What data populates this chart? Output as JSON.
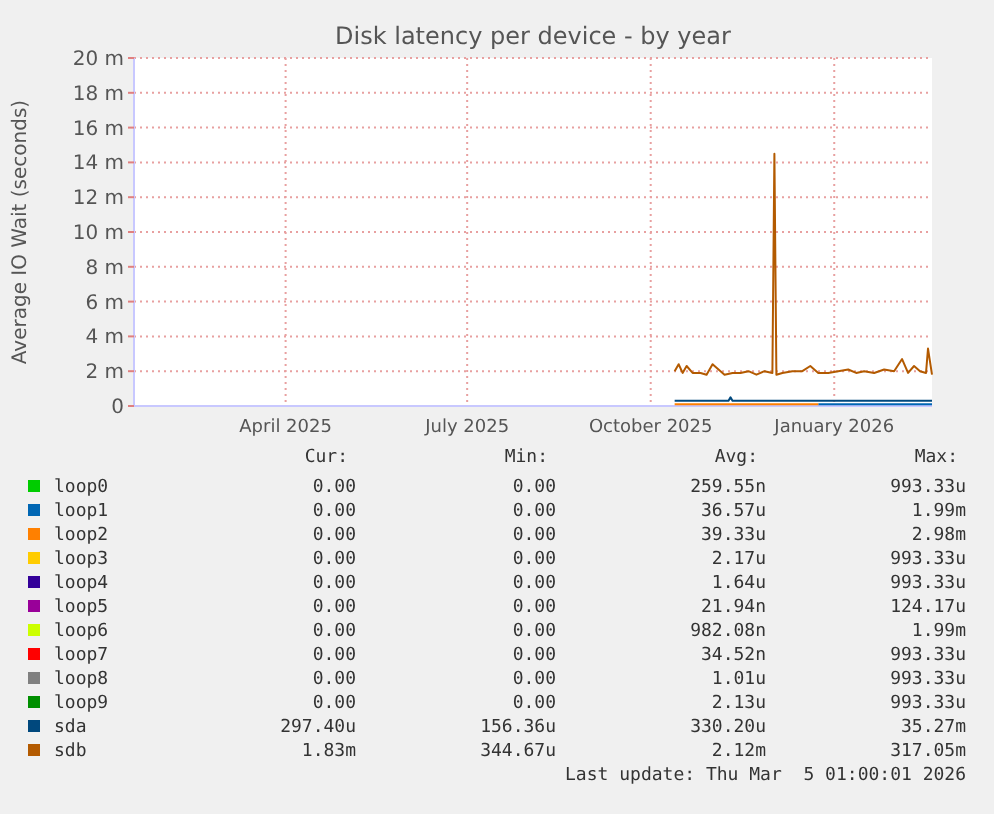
{
  "chart_data": {
    "type": "line",
    "title": "Disk latency per device - by year",
    "ylabel": "Average IO Wait (seconds)",
    "xlim": [
      "2025-01-29",
      "2026-03-05"
    ],
    "xticks": [
      {
        "value": "2025-04-15",
        "label": "April 2025"
      },
      {
        "value": "2025-07-15",
        "label": "July 2025"
      },
      {
        "value": "2025-10-15",
        "label": "October 2025"
      },
      {
        "value": "2026-01-15",
        "label": "January 2026"
      }
    ],
    "ylim": [
      0,
      20
    ],
    "yticks": [
      0,
      {
        "value": 2,
        "label": "2 m"
      },
      {
        "value": 4,
        "label": "4 m"
      },
      {
        "value": 6,
        "label": "6 m"
      },
      {
        "value": 8,
        "label": "8 m"
      },
      {
        "value": 10,
        "label": "10 m"
      },
      {
        "value": 12,
        "label": "12 m"
      },
      {
        "value": 14,
        "label": "14 m"
      },
      {
        "value": 16,
        "label": "16 m"
      },
      {
        "value": 18,
        "label": "18 m"
      },
      {
        "value": 20,
        "label": "20 m"
      }
    ],
    "grid": true,
    "legend": "bottom",
    "line_style": "solid",
    "series": [
      {
        "name": "loop0",
        "color": "#00cc00"
      },
      {
        "name": "loop1",
        "color": "#0066b3",
        "x": [
          "2026-01-07",
          "2026-03-05"
        ],
        "values": [
          0.1,
          0.1
        ]
      },
      {
        "name": "loop2",
        "color": "#ff8000",
        "x": [
          "2025-10-27",
          "2026-01-07"
        ],
        "values": [
          0.1,
          0.1
        ]
      },
      {
        "name": "loop3",
        "color": "#ffcc00"
      },
      {
        "name": "loop4",
        "color": "#330099"
      },
      {
        "name": "loop5",
        "color": "#990099"
      },
      {
        "name": "loop6",
        "color": "#ccff00"
      },
      {
        "name": "loop7",
        "color": "#ff0000"
      },
      {
        "name": "loop8",
        "color": "#808080"
      },
      {
        "name": "loop9",
        "color": "#008f00"
      },
      {
        "name": "sda",
        "color": "#00487d",
        "x": [
          "2025-10-27",
          "2025-11-23",
          "2025-11-24",
          "2025-11-25",
          "2026-03-05"
        ],
        "values": [
          0.3,
          0.3,
          0.5,
          0.3,
          0.3
        ]
      },
      {
        "name": "sdb",
        "color": "#b35a00",
        "x": [
          "2025-10-27",
          "2025-10-29",
          "2025-10-31",
          "2025-11-02",
          "2025-11-05",
          "2025-11-09",
          "2025-11-12",
          "2025-11-15",
          "2025-11-18",
          "2025-11-21",
          "2025-11-25",
          "2025-11-29",
          "2025-12-03",
          "2025-12-07",
          "2025-12-11",
          "2025-12-15",
          "2025-12-16",
          "2025-12-17",
          "2025-12-20",
          "2025-12-25",
          "2025-12-30",
          "2026-01-03",
          "2026-01-07",
          "2026-01-12",
          "2026-01-17",
          "2026-01-22",
          "2026-01-26",
          "2026-01-30",
          "2026-02-04",
          "2026-02-09",
          "2026-02-14",
          "2026-02-18",
          "2026-02-21",
          "2026-02-24",
          "2026-02-27",
          "2026-03-02",
          "2026-03-03",
          "2026-03-05"
        ],
        "values": [
          2.0,
          2.4,
          1.9,
          2.3,
          1.9,
          1.9,
          1.8,
          2.4,
          2.1,
          1.8,
          1.9,
          1.9,
          2.0,
          1.8,
          2.0,
          1.9,
          14.5,
          1.8,
          1.9,
          2.0,
          2.0,
          2.3,
          1.9,
          1.9,
          2.0,
          2.1,
          1.9,
          2.0,
          1.9,
          2.1,
          2.0,
          2.7,
          1.9,
          2.3,
          2.0,
          1.9,
          3.3,
          1.8
        ]
      }
    ],
    "annotations": [
      "Cur:",
      "Min:",
      "Avg:",
      "Max:",
      "0.00",
      "0.00",
      "259.55n",
      "993.33u",
      "0.00",
      "0.00",
      "36.57u",
      "1.99m",
      "0.00",
      "0.00",
      "39.33u",
      "2.98m",
      "0.00",
      "0.00",
      "2.17u",
      "993.33u",
      "0.00",
      "0.00",
      "1.64u",
      "993.33u",
      "0.00",
      "0.00",
      "21.94n",
      "124.17u",
      "0.00",
      "0.00",
      "982.08n",
      "1.99m",
      "0.00",
      "0.00",
      "34.52n",
      "993.33u",
      "0.00",
      "0.00",
      "1.01u",
      "993.33u",
      "0.00",
      "0.00",
      "2.13u",
      "993.33u",
      "297.40u",
      "156.36u",
      "330.20u",
      "35.27m",
      "1.83m",
      "344.67u",
      "2.12m",
      "317.05m",
      "Last update: Thu Mar  5 01:00:01 2026"
    ]
  }
}
